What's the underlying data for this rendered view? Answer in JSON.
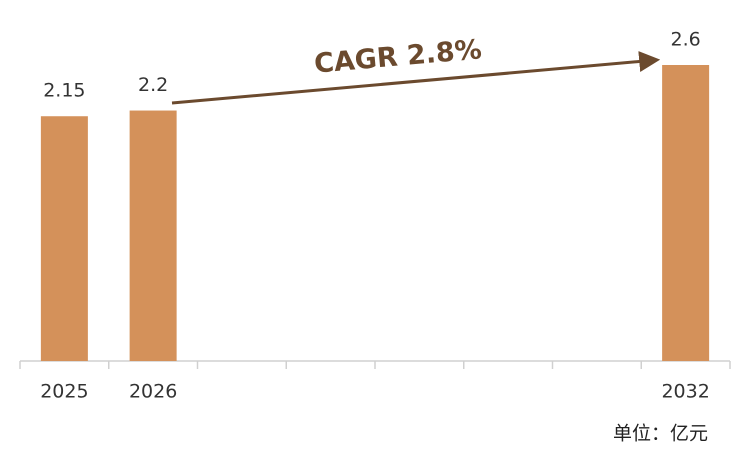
{
  "chart_data": {
    "type": "bar",
    "categories": [
      "2025",
      "2026",
      null,
      null,
      null,
      null,
      null,
      "2032"
    ],
    "values": [
      2.15,
      2.2,
      null,
      null,
      null,
      null,
      null,
      2.6
    ],
    "color": "#d4915a",
    "annotation": "CAGR 2.8%",
    "unit_note": "单位：亿元"
  }
}
